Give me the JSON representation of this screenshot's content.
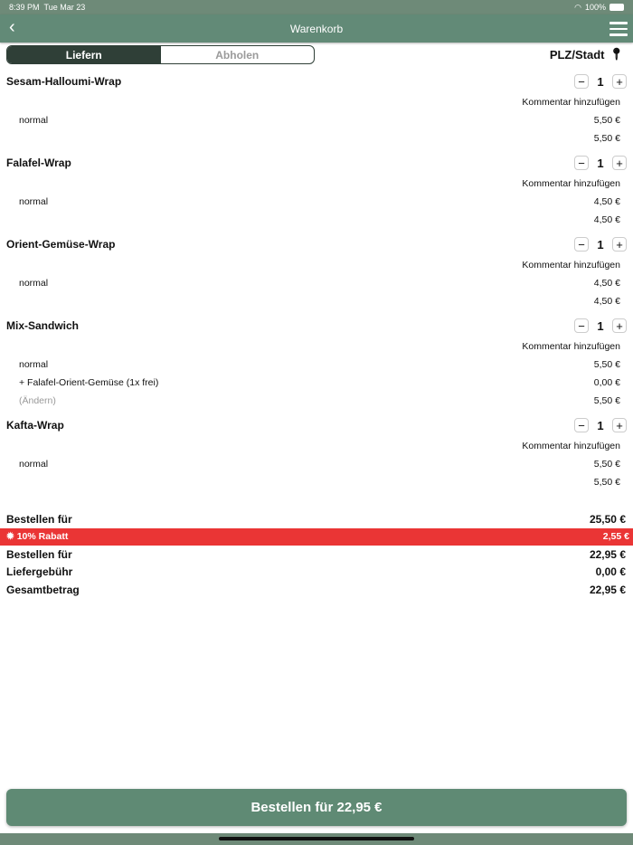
{
  "status": {
    "time": "8:39 PM",
    "date": "Tue Mar 23",
    "battery": "100%"
  },
  "header": {
    "title": "Warenkorb"
  },
  "tabs": {
    "deliver": "Liefern",
    "pickup": "Abholen",
    "active": "Liefern"
  },
  "location": {
    "label": "PLZ/Stadt"
  },
  "items": [
    {
      "name": "Sesam-Halloumi-Wrap",
      "qty": "1",
      "comment": "Kommentar hinzufügen",
      "lines": [
        {
          "label": "normal",
          "value": "5,50 €"
        },
        {
          "label": "",
          "value": "5,50 €"
        }
      ]
    },
    {
      "name": "Falafel-Wrap",
      "qty": "1",
      "comment": "Kommentar hinzufügen",
      "lines": [
        {
          "label": "normal",
          "value": "4,50 €"
        },
        {
          "label": "",
          "value": "4,50 €"
        }
      ]
    },
    {
      "name": "Orient-Gemüse-Wrap",
      "qty": "1",
      "comment": "Kommentar hinzufügen",
      "lines": [
        {
          "label": "normal",
          "value": "4,50 €"
        },
        {
          "label": "",
          "value": "4,50 €"
        }
      ]
    },
    {
      "name": "Mix-Sandwich",
      "qty": "1",
      "comment": "Kommentar hinzufügen",
      "lines": [
        {
          "label": "normal",
          "value": "5,50 €"
        },
        {
          "label": "+ Falafel-Orient-Gemüse (1x frei)",
          "value": "0,00 €"
        },
        {
          "label": "(Ändern)",
          "value": "5,50 €"
        }
      ]
    },
    {
      "name": "Kafta-Wrap",
      "qty": "1",
      "comment": "Kommentar hinzufügen",
      "lines": [
        {
          "label": "normal",
          "value": "5,50 €"
        },
        {
          "label": "",
          "value": "5,50 €"
        }
      ]
    }
  ],
  "summary": {
    "subtotal_label": "Bestellen für",
    "subtotal": "25,50 €",
    "discount_label": "10% Rabatt",
    "discount": "2,55 €",
    "after_label": "Bestellen für",
    "after": "22,95 €",
    "fee_label": "Liefergebühr",
    "fee": "0,00 €",
    "total_label": "Gesamtbetrag",
    "total": "22,95 €"
  },
  "order_button": "Bestellen für 22,95 €",
  "colors": {
    "brand": "#628a77",
    "discount": "#ea3535",
    "segment": "#2f3f37"
  }
}
